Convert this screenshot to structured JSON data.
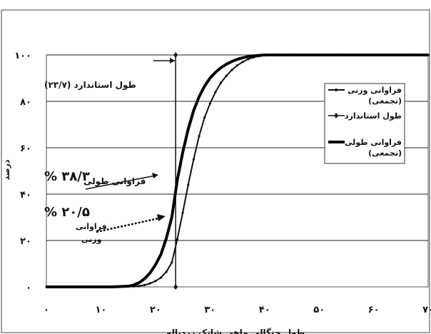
{
  "chart_data": {
    "type": "line",
    "xlabel": "طول چنگالی ماهی شانک زردباله",
    "ylabel": "درصد",
    "xlim": [
      0,
      70
    ],
    "ylim": [
      0,
      100
    ],
    "x_ticks": [
      "۰",
      "۱۰",
      "۲۰",
      "۳۰",
      "۴۰",
      "۵۰",
      "۶۰",
      "۷۰"
    ],
    "y_ticks": [
      "۰",
      "۲۰",
      "۴۰",
      "۶۰",
      "۸۰",
      "۱۰۰"
    ],
    "grid": "horizontal",
    "legend_position": "right",
    "series": [
      {
        "name": "فراوانی وزنی (تجمعی)",
        "style": "thin-line-with-dots",
        "x": [
          0,
          12,
          15,
          16,
          17,
          18,
          19,
          20,
          21,
          22,
          23,
          24,
          25,
          26,
          27,
          28,
          29,
          30,
          31,
          32,
          33,
          34,
          35,
          36,
          37,
          38,
          39,
          40,
          42,
          45,
          50,
          55,
          60,
          65,
          70
        ],
        "y": [
          0,
          0,
          0.1,
          0.2,
          0.4,
          0.8,
          1.5,
          2.5,
          4,
          6.5,
          10.5,
          20.5,
          32,
          44,
          55,
          65,
          73,
          79,
          84,
          88,
          91,
          93.5,
          95.5,
          97,
          98.2,
          99,
          99.5,
          99.8,
          100,
          100,
          100,
          100,
          100,
          100,
          100
        ]
      },
      {
        "name": "طول استاندارد",
        "style": "vertical-marker",
        "x": [
          23.7,
          23.7
        ],
        "y": [
          0,
          100
        ]
      },
      {
        "name": "فراوانی طولی (تجمعی)",
        "style": "thick-line",
        "x": [
          0,
          12,
          15,
          16,
          17,
          18,
          19,
          20,
          21,
          22,
          23,
          24,
          25,
          26,
          27,
          28,
          29,
          30,
          31,
          32,
          33,
          34,
          35,
          36,
          37,
          38,
          39,
          40,
          42,
          45,
          50,
          55,
          60,
          65,
          70
        ],
        "y": [
          0,
          0,
          0.3,
          0.8,
          1.8,
          3.5,
          6,
          9.5,
          14,
          21,
          30,
          46,
          58,
          68,
          76,
          82,
          86.5,
          90,
          92.5,
          94.5,
          96,
          97.2,
          98.1,
          98.8,
          99.3,
          99.6,
          99.8,
          100,
          100,
          100,
          100,
          100,
          100,
          100,
          100
        ]
      }
    ],
    "annotations": {
      "standard_length": "طول استاندارد (۲۳/۷)",
      "length_pct": "% ۳۸/۳",
      "length_label": "فراوانی طولی",
      "weight_pct": "% ۲۰/۵",
      "weight_label_1": "فراوانی",
      "weight_label_2": "وزنی"
    },
    "legend": {
      "weight_1": "فراوانی وزنی",
      "weight_2": "(تجمعی)",
      "standard": "طول استاندارد",
      "length_1": "فراوانی طولی",
      "length_2": "(تجمعی)"
    }
  }
}
